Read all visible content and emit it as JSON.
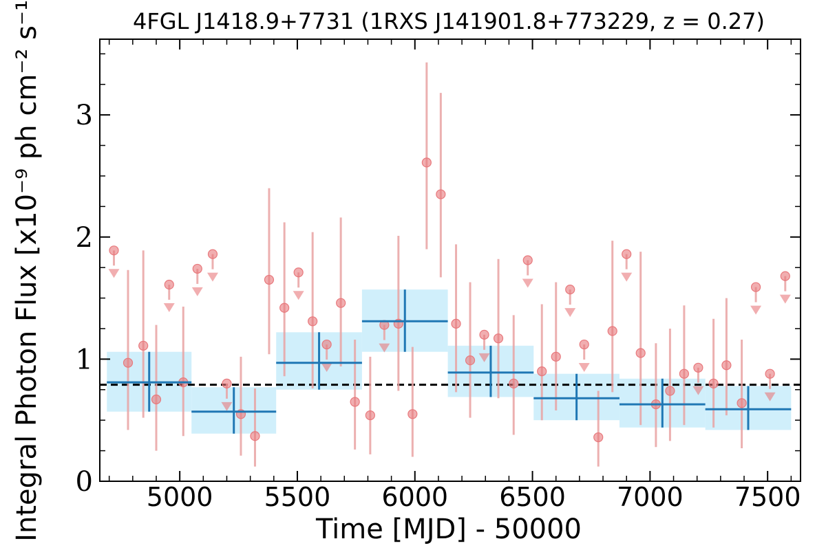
{
  "chart_data": {
    "type": "scatter",
    "title": "4FGL J1418.9+7731 (1RXS J141901.8+773229, z = 0.27)",
    "xlabel": "Time [MJD] - 50000",
    "ylabel": "Integral Photon Flux [x10⁻⁹ ph cm⁻² s⁻¹]",
    "xlim": [
      4660,
      7640
    ],
    "ylim": [
      0,
      3.62
    ],
    "xticks": [
      "5000",
      "5500",
      "6000",
      "6500",
      "7000",
      "7500"
    ],
    "yticks": [
      "0",
      "1",
      "2",
      "3"
    ],
    "mean_flux": 0.79,
    "colors": {
      "points": "#e8787c",
      "errorbars": "#e9a3a3",
      "bins": "#1f77b4",
      "bin_bands": "#cdeefb",
      "mean_line": "#000000"
    },
    "series": [
      {
        "kind": "detections",
        "points": [
          {
            "x": 4780,
            "y": 0.97,
            "lo": 0.42,
            "hi": 1.73
          },
          {
            "x": 4845,
            "y": 1.11,
            "lo": 0.52,
            "hi": 1.89
          },
          {
            "x": 4900,
            "y": 0.67,
            "lo": 0.25,
            "hi": 1.28
          },
          {
            "x": 5015,
            "y": 0.81,
            "lo": 0.37,
            "hi": 1.43
          },
          {
            "x": 5260,
            "y": 0.55,
            "lo": 0.21,
            "hi": 1.02
          },
          {
            "x": 5320,
            "y": 0.37,
            "lo": 0.12,
            "hi": 0.76
          },
          {
            "x": 5380,
            "y": 1.65,
            "lo": 1.04,
            "hi": 2.4
          },
          {
            "x": 5445,
            "y": 1.42,
            "lo": 0.86,
            "hi": 2.12
          },
          {
            "x": 5565,
            "y": 1.31,
            "lo": 0.76,
            "hi": 2.04
          },
          {
            "x": 5685,
            "y": 1.46,
            "lo": 0.94,
            "hi": 2.16
          },
          {
            "x": 5745,
            "y": 0.65,
            "lo": 0.26,
            "hi": 1.16
          },
          {
            "x": 5810,
            "y": 0.54,
            "lo": 0.22,
            "hi": 1.02
          },
          {
            "x": 5930,
            "y": 1.29,
            "lo": 0.74,
            "hi": 2.01
          },
          {
            "x": 5990,
            "y": 0.55,
            "lo": 0.2,
            "hi": 1.1
          },
          {
            "x": 6050,
            "y": 2.61,
            "lo": 1.9,
            "hi": 3.43
          },
          {
            "x": 6110,
            "y": 2.35,
            "lo": 1.67,
            "hi": 3.18
          },
          {
            "x": 6175,
            "y": 1.29,
            "lo": 0.73,
            "hi": 1.94
          },
          {
            "x": 6235,
            "y": 0.99,
            "lo": 0.52,
            "hi": 1.63
          },
          {
            "x": 6355,
            "y": 1.17,
            "lo": 0.68,
            "hi": 1.82
          },
          {
            "x": 6420,
            "y": 0.8,
            "lo": 0.38,
            "hi": 1.36
          },
          {
            "x": 6540,
            "y": 0.9,
            "lo": 0.5,
            "hi": 1.45
          },
          {
            "x": 6600,
            "y": 1.02,
            "lo": 0.58,
            "hi": 1.63
          },
          {
            "x": 6780,
            "y": 0.36,
            "lo": 0.12,
            "hi": 0.74
          },
          {
            "x": 6840,
            "y": 1.23,
            "lo": 0.73,
            "hi": 1.97
          },
          {
            "x": 6960,
            "y": 1.05,
            "lo": 0.46,
            "hi": 1.88
          },
          {
            "x": 7025,
            "y": 0.63,
            "lo": 0.28,
            "hi": 1.13
          },
          {
            "x": 7085,
            "y": 0.74,
            "lo": 0.33,
            "hi": 1.25
          },
          {
            "x": 7145,
            "y": 0.88,
            "lo": 0.46,
            "hi": 1.44
          },
          {
            "x": 7270,
            "y": 0.8,
            "lo": 0.44,
            "hi": 1.33
          },
          {
            "x": 7325,
            "y": 0.95,
            "lo": 0.54,
            "hi": 1.5
          },
          {
            "x": 7390,
            "y": 0.64,
            "lo": 0.27,
            "hi": 1.16
          }
        ]
      },
      {
        "kind": "upper_limits",
        "points": [
          {
            "x": 4720,
            "y": 1.89
          },
          {
            "x": 4955,
            "y": 1.61
          },
          {
            "x": 5075,
            "y": 1.74
          },
          {
            "x": 5140,
            "y": 1.86
          },
          {
            "x": 5200,
            "y": 0.8
          },
          {
            "x": 5505,
            "y": 1.71
          },
          {
            "x": 5625,
            "y": 1.12
          },
          {
            "x": 5870,
            "y": 1.28
          },
          {
            "x": 6295,
            "y": 1.2
          },
          {
            "x": 6480,
            "y": 1.81
          },
          {
            "x": 6660,
            "y": 1.57
          },
          {
            "x": 6720,
            "y": 1.12
          },
          {
            "x": 6900,
            "y": 1.86
          },
          {
            "x": 7205,
            "y": 0.93
          },
          {
            "x": 7450,
            "y": 1.59
          },
          {
            "x": 7510,
            "y": 0.88
          },
          {
            "x": 7575,
            "y": 1.68
          }
        ]
      },
      {
        "kind": "binned",
        "bins": [
          {
            "x0": 4690,
            "x1": 5050,
            "y": 0.81,
            "lo": 0.57,
            "hi": 1.06
          },
          {
            "x0": 5050,
            "x1": 5410,
            "y": 0.57,
            "lo": 0.39,
            "hi": 0.77
          },
          {
            "x0": 5410,
            "x1": 5775,
            "y": 0.97,
            "lo": 0.75,
            "hi": 1.22
          },
          {
            "x0": 5775,
            "x1": 6140,
            "y": 1.31,
            "lo": 1.06,
            "hi": 1.57
          },
          {
            "x0": 6140,
            "x1": 6505,
            "y": 0.89,
            "lo": 0.69,
            "hi": 1.11
          },
          {
            "x0": 6505,
            "x1": 6870,
            "y": 0.68,
            "lo": 0.5,
            "hi": 0.88
          },
          {
            "x0": 6870,
            "x1": 7235,
            "y": 0.63,
            "lo": 0.44,
            "hi": 0.84
          },
          {
            "x0": 7235,
            "x1": 7600,
            "y": 0.59,
            "lo": 0.42,
            "hi": 0.78
          }
        ]
      }
    ]
  }
}
